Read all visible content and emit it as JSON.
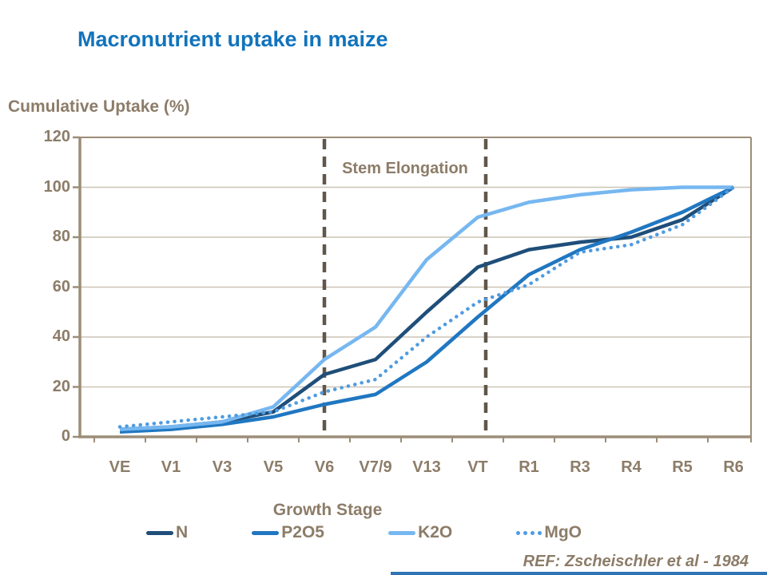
{
  "reference": "REF: Zscheischler et al - 1984",
  "colors": {
    "title": "#1173BC",
    "axis_text": "#8C7C68",
    "axis_line": "#9C8D79",
    "gridline": "#CCC3B6",
    "dashed_marker": "#60574A",
    "footer_bar": "#2E74B5"
  },
  "chart_data": {
    "type": "line",
    "title": "Macronutrient uptake in maize",
    "xlabel": "Growth Stage",
    "ylabel": "Cumulative Uptake (%)",
    "categories": [
      "VE",
      "V1",
      "V3",
      "V5",
      "V6",
      "V7/9",
      "V13",
      "VT",
      "R1",
      "R3",
      "R4",
      "R5",
      "R6"
    ],
    "series": [
      {
        "name": "N",
        "color": "#1F4E79",
        "line_style": "solid",
        "values": [
          3,
          4,
          6,
          10,
          25,
          31,
          50,
          68,
          75,
          78,
          80,
          87,
          100
        ]
      },
      {
        "name": "P2O5",
        "color": "#2077C1",
        "line_style": "solid",
        "values": [
          2,
          3,
          5,
          8,
          13,
          17,
          30,
          48,
          65,
          75,
          82,
          90,
          100
        ]
      },
      {
        "name": "K2O",
        "color": "#76B7F0",
        "line_style": "solid",
        "values": [
          3,
          4,
          6,
          12,
          31,
          44,
          71,
          88,
          94,
          97,
          99,
          100,
          100
        ]
      },
      {
        "name": "MgO",
        "color": "#4F9BE0",
        "line_style": "dotted",
        "values": [
          4,
          6,
          8,
          10,
          18,
          23,
          40,
          54,
          61,
          74,
          77,
          85,
          100
        ]
      }
    ],
    "ylim": [
      0,
      120
    ],
    "ytick_step": 20,
    "grid": "horizontal",
    "legend_position": "bottom",
    "annotations": [
      {
        "text": "Stem Elongation",
        "type": "vertical-dashed-lines",
        "between_categories": [
          "V6",
          "VT"
        ]
      }
    ]
  }
}
